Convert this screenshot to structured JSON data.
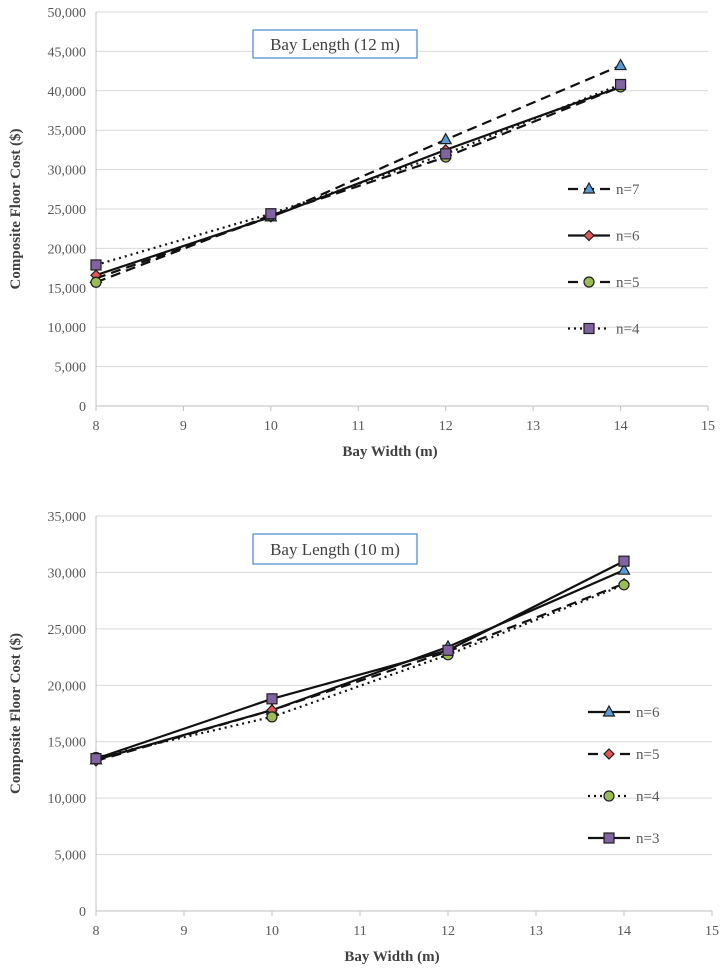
{
  "chart_data": [
    {
      "type": "line",
      "annotation": "Bay Length (12 m)",
      "xlabel": "Bay Width (m)",
      "ylabel": "Composite Floor Cost ($)",
      "xlim": [
        8,
        15
      ],
      "ylim": [
        0,
        50000
      ],
      "xticks": [
        "8",
        "9",
        "10",
        "11",
        "12",
        "13",
        "14",
        "15"
      ],
      "yticks": [
        "0",
        "5,000",
        "10,000",
        "15,000",
        "20,000",
        "25,000",
        "30,000",
        "35,000",
        "40,000",
        "45,000",
        "50,000"
      ],
      "grid": "horizontal",
      "legend_position": "right",
      "series": [
        {
          "name": "n=7",
          "x": [
            8,
            10,
            12,
            14
          ],
          "values": [
            16200,
            24000,
            33800,
            43200
          ],
          "line": "dashed",
          "marker": "triangle",
          "marker_color": "#5b9bd5"
        },
        {
          "name": "n=6",
          "x": [
            8,
            10,
            12,
            14
          ],
          "values": [
            16600,
            24000,
            32500,
            40500
          ],
          "line": "solid",
          "marker": "diamond",
          "marker_color": "#e15759"
        },
        {
          "name": "n=5",
          "x": [
            8,
            10,
            12,
            14
          ],
          "values": [
            15700,
            24200,
            31600,
            40500
          ],
          "line": "dashed",
          "marker": "circle",
          "marker_color": "#9bbb59"
        },
        {
          "name": "n=4",
          "x": [
            8,
            10,
            12,
            14
          ],
          "values": [
            17900,
            24400,
            32000,
            40800
          ],
          "line": "dotted",
          "marker": "square",
          "marker_color": "#8064a2"
        }
      ]
    },
    {
      "type": "line",
      "annotation": "Bay Length (10 m)",
      "xlabel": "Bay Width (m)",
      "ylabel": "Composite Floor Cost ($)",
      "xlim": [
        8,
        15
      ],
      "ylim": [
        0,
        35000
      ],
      "xticks": [
        "8",
        "9",
        "10",
        "11",
        "12",
        "13",
        "14",
        "15"
      ],
      "yticks": [
        "0",
        "5,000",
        "10,000",
        "15,000",
        "20,000",
        "25,000",
        "30,000",
        "35,000"
      ],
      "grid": "horizontal",
      "legend_position": "right",
      "series": [
        {
          "name": "n=6",
          "x": [
            8,
            10,
            12,
            14
          ],
          "values": [
            13400,
            17800,
            23400,
            30200
          ],
          "line": "solid",
          "marker": "triangle",
          "marker_color": "#5b9bd5"
        },
        {
          "name": "n=5",
          "x": [
            8,
            10,
            12,
            14
          ],
          "values": [
            13300,
            17800,
            23000,
            29000
          ],
          "line": "dashed",
          "marker": "diamond",
          "marker_color": "#e15759"
        },
        {
          "name": "n=4",
          "x": [
            8,
            10,
            12,
            14
          ],
          "values": [
            13600,
            17200,
            22700,
            28900
          ],
          "line": "dotted",
          "marker": "circle",
          "marker_color": "#9bbb59"
        },
        {
          "name": "n=3",
          "x": [
            8,
            10,
            12,
            14
          ],
          "values": [
            13500,
            18800,
            23100,
            31000
          ],
          "line": "solid",
          "marker": "square",
          "marker_color": "#8064a2"
        }
      ]
    }
  ]
}
